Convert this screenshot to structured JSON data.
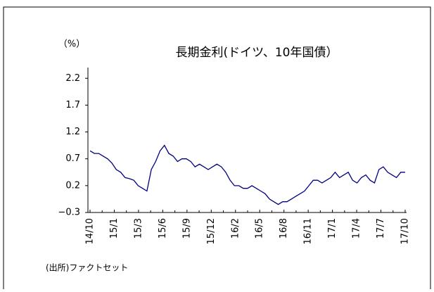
{
  "chart_data": {
    "type": "line",
    "title": "長期金利(ドイツ、10年国債）",
    "y_label": "（%）",
    "source": "(出所)ファクトセット",
    "xtick_labels": [
      "14/10",
      "15/1",
      "15/3",
      "15/6",
      "15/9",
      "15/12",
      "16/2",
      "16/5",
      "16/8",
      "16/11",
      "17/1",
      "17/4",
      "17/7",
      "17/10"
    ],
    "color": "#000080",
    "values": [
      0.85,
      0.8,
      0.8,
      0.75,
      0.7,
      0.62,
      0.5,
      0.45,
      0.35,
      0.33,
      0.3,
      0.2,
      0.15,
      0.1,
      0.5,
      0.65,
      0.85,
      0.95,
      0.8,
      0.75,
      0.65,
      0.7,
      0.7,
      0.65,
      0.55,
      0.6,
      0.55,
      0.5,
      0.55,
      0.6,
      0.55,
      0.45,
      0.3,
      0.2,
      0.2,
      0.15,
      0.15,
      0.2,
      0.15,
      0.1,
      0.05,
      -0.05,
      -0.1,
      -0.15,
      -0.1,
      -0.1,
      -0.05,
      0.0,
      0.05,
      0.1,
      0.2,
      0.3,
      0.3,
      0.25,
      0.3,
      0.35,
      0.45,
      0.35,
      0.4,
      0.45,
      0.3,
      0.25,
      0.35,
      0.4,
      0.3,
      0.25,
      0.5,
      0.55,
      0.45,
      0.4,
      0.35,
      0.45,
      0.45
    ],
    "ylim": [
      -0.3,
      2.4
    ],
    "yticks": [
      {
        "value": -0.3,
        "label": "−0.3"
      },
      0.2,
      0.7,
      1.2,
      1.7,
      2.2
    ]
  }
}
